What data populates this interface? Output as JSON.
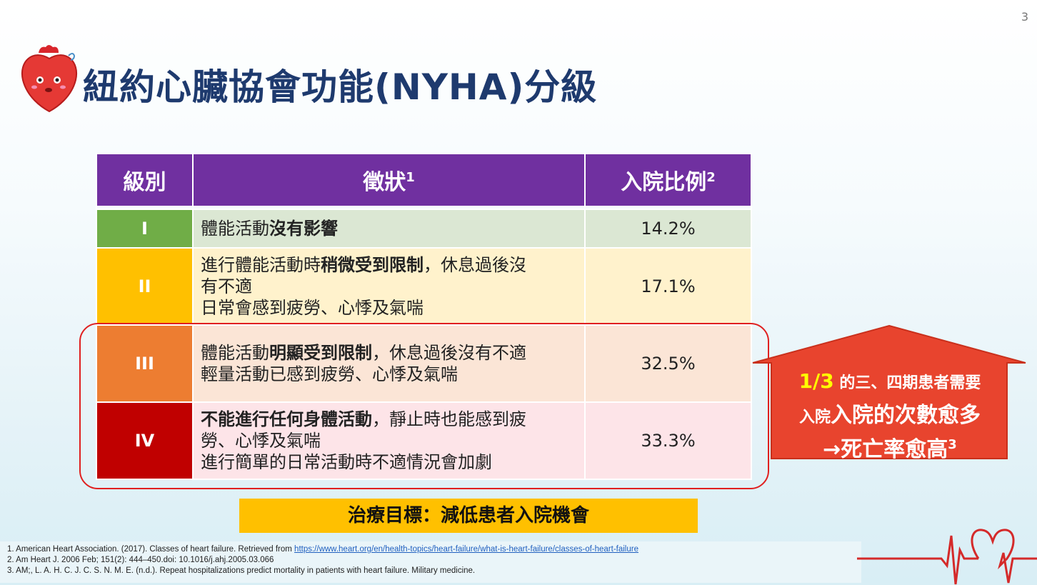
{
  "page_number": "3",
  "title": "紐約心臟協會功能(NYHA)分級",
  "table": {
    "headers": {
      "grade": "級別",
      "symptoms": "徵狀",
      "symptoms_sup": "1",
      "rate": "入院比例",
      "rate_sup": "2"
    },
    "rows": [
      {
        "grade": "I",
        "color": "#70ad47",
        "bg": "#dbe7d3",
        "s1_pre": "體能活動",
        "s1_bold": "沒有影響",
        "s1_post": "",
        "s2": "",
        "s3": "",
        "rate": "14.2%"
      },
      {
        "grade": "II",
        "color": "#ffc000",
        "bg": "#fff2cc",
        "s1_pre": "進行體能活動時",
        "s1_bold": "稍微受到限制",
        "s1_post": "，休息過後沒",
        "s2": "有不適",
        "s3": "日常會感到疲勞、心悸及氣喘",
        "rate": "17.1%"
      },
      {
        "grade": "III",
        "color": "#ed7d31",
        "bg": "#fbe5d6",
        "s1_pre": "體能活動",
        "s1_bold": "明顯受到限制",
        "s1_post": "，休息過後沒有不適",
        "s2": "輕量活動已感到疲勞、心悸及氣喘",
        "s3": "",
        "rate": "32.5%"
      },
      {
        "grade": "IV",
        "color": "#c00000",
        "bg": "#fde4e8",
        "s1_pre": "",
        "s1_bold": "不能進行任何身體活動",
        "s1_post": "，靜止時也能感到疲",
        "s2": "勞、心悸及氣喘",
        "s3": "進行簡單的日常活動時不適情況會加劇",
        "rate": "33.3%"
      }
    ]
  },
  "callout": {
    "fraction": "1/3",
    "line1_rest": " 的三、四期患者需要",
    "line2_small": "入院",
    "line2_big": "入院的次數愈多",
    "line3": "→死亡率愈高",
    "line3_sup": "3",
    "color": "#e8442e"
  },
  "goal": "治療目標：減低患者入院機會",
  "references": {
    "r1_text": "1. American Heart Association. (2017). Classes of heart failure. Retrieved from ",
    "r1_link": "https://www.heart.org/en/health-topics/heart-failure/what-is-heart-failure/classes-of-heart-failure",
    "r2": "2. Am Heart J. 2006 Feb; 151(2): 444–450.doi: 10.1016/j.ahj.2005.03.066",
    "r3": "3. AM;, L. A. H. C. J. C. S. N. M. E. (n.d.). Repeat hospitalizations predict mortality in patients with heart failure. Military medicine."
  }
}
